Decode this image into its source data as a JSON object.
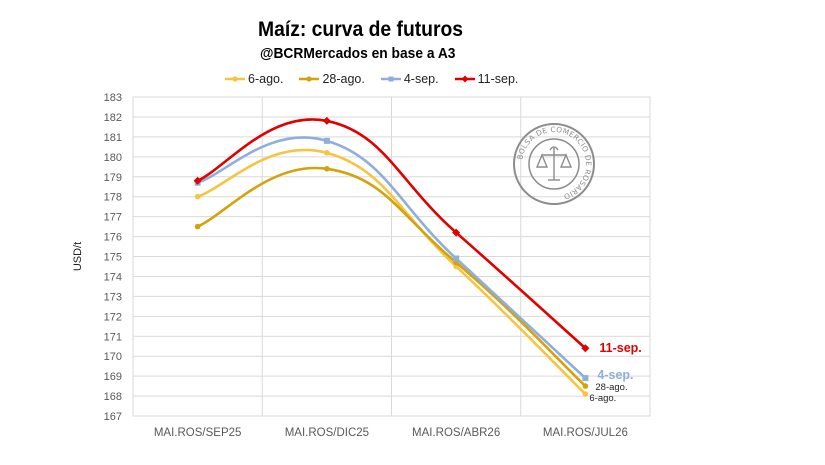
{
  "title": "Maíz: curva de futuros",
  "subtitle": "@BCRMercados en base a A3",
  "colors": {
    "6-ago.": "#f5c542",
    "28-ago.": "#d4a20b",
    "4-sep.": "#8eaedc",
    "11-sep.": "#e00000",
    "grid": "#d9d9d9",
    "axis": "#595959"
  },
  "seal": {
    "text": "BOLSA DE COMERCIO DE ROSARIO"
  },
  "chart_data": {
    "type": "line",
    "title": "Maíz: curva de futuros",
    "xlabel": "",
    "ylabel": "USD/t",
    "ylim": [
      167,
      183
    ],
    "yticks": [
      "167",
      "168",
      "169",
      "170",
      "171",
      "172",
      "173",
      "174",
      "175",
      "176",
      "177",
      "178",
      "179",
      "180",
      "181",
      "182",
      "183"
    ],
    "categories": [
      "MAI.ROS/SEP25",
      "MAI.ROS/DIC25",
      "MAI.ROS/ABR26",
      "MAI.ROS/JUL26"
    ],
    "grid": true,
    "legend_position": "top",
    "series": [
      {
        "name": "6-ago.",
        "values": [
          178.0,
          180.2,
          174.5,
          168.1
        ],
        "end_label": "6-ago."
      },
      {
        "name": "28-ago.",
        "values": [
          176.5,
          179.4,
          174.7,
          168.5
        ],
        "end_label": "28-ago."
      },
      {
        "name": "4-sep.",
        "values": [
          178.7,
          180.8,
          174.9,
          168.9
        ],
        "end_label": "4-sep."
      },
      {
        "name": "11-sep.",
        "values": [
          178.8,
          181.8,
          176.2,
          170.4
        ],
        "end_label": "11-sep."
      }
    ]
  }
}
